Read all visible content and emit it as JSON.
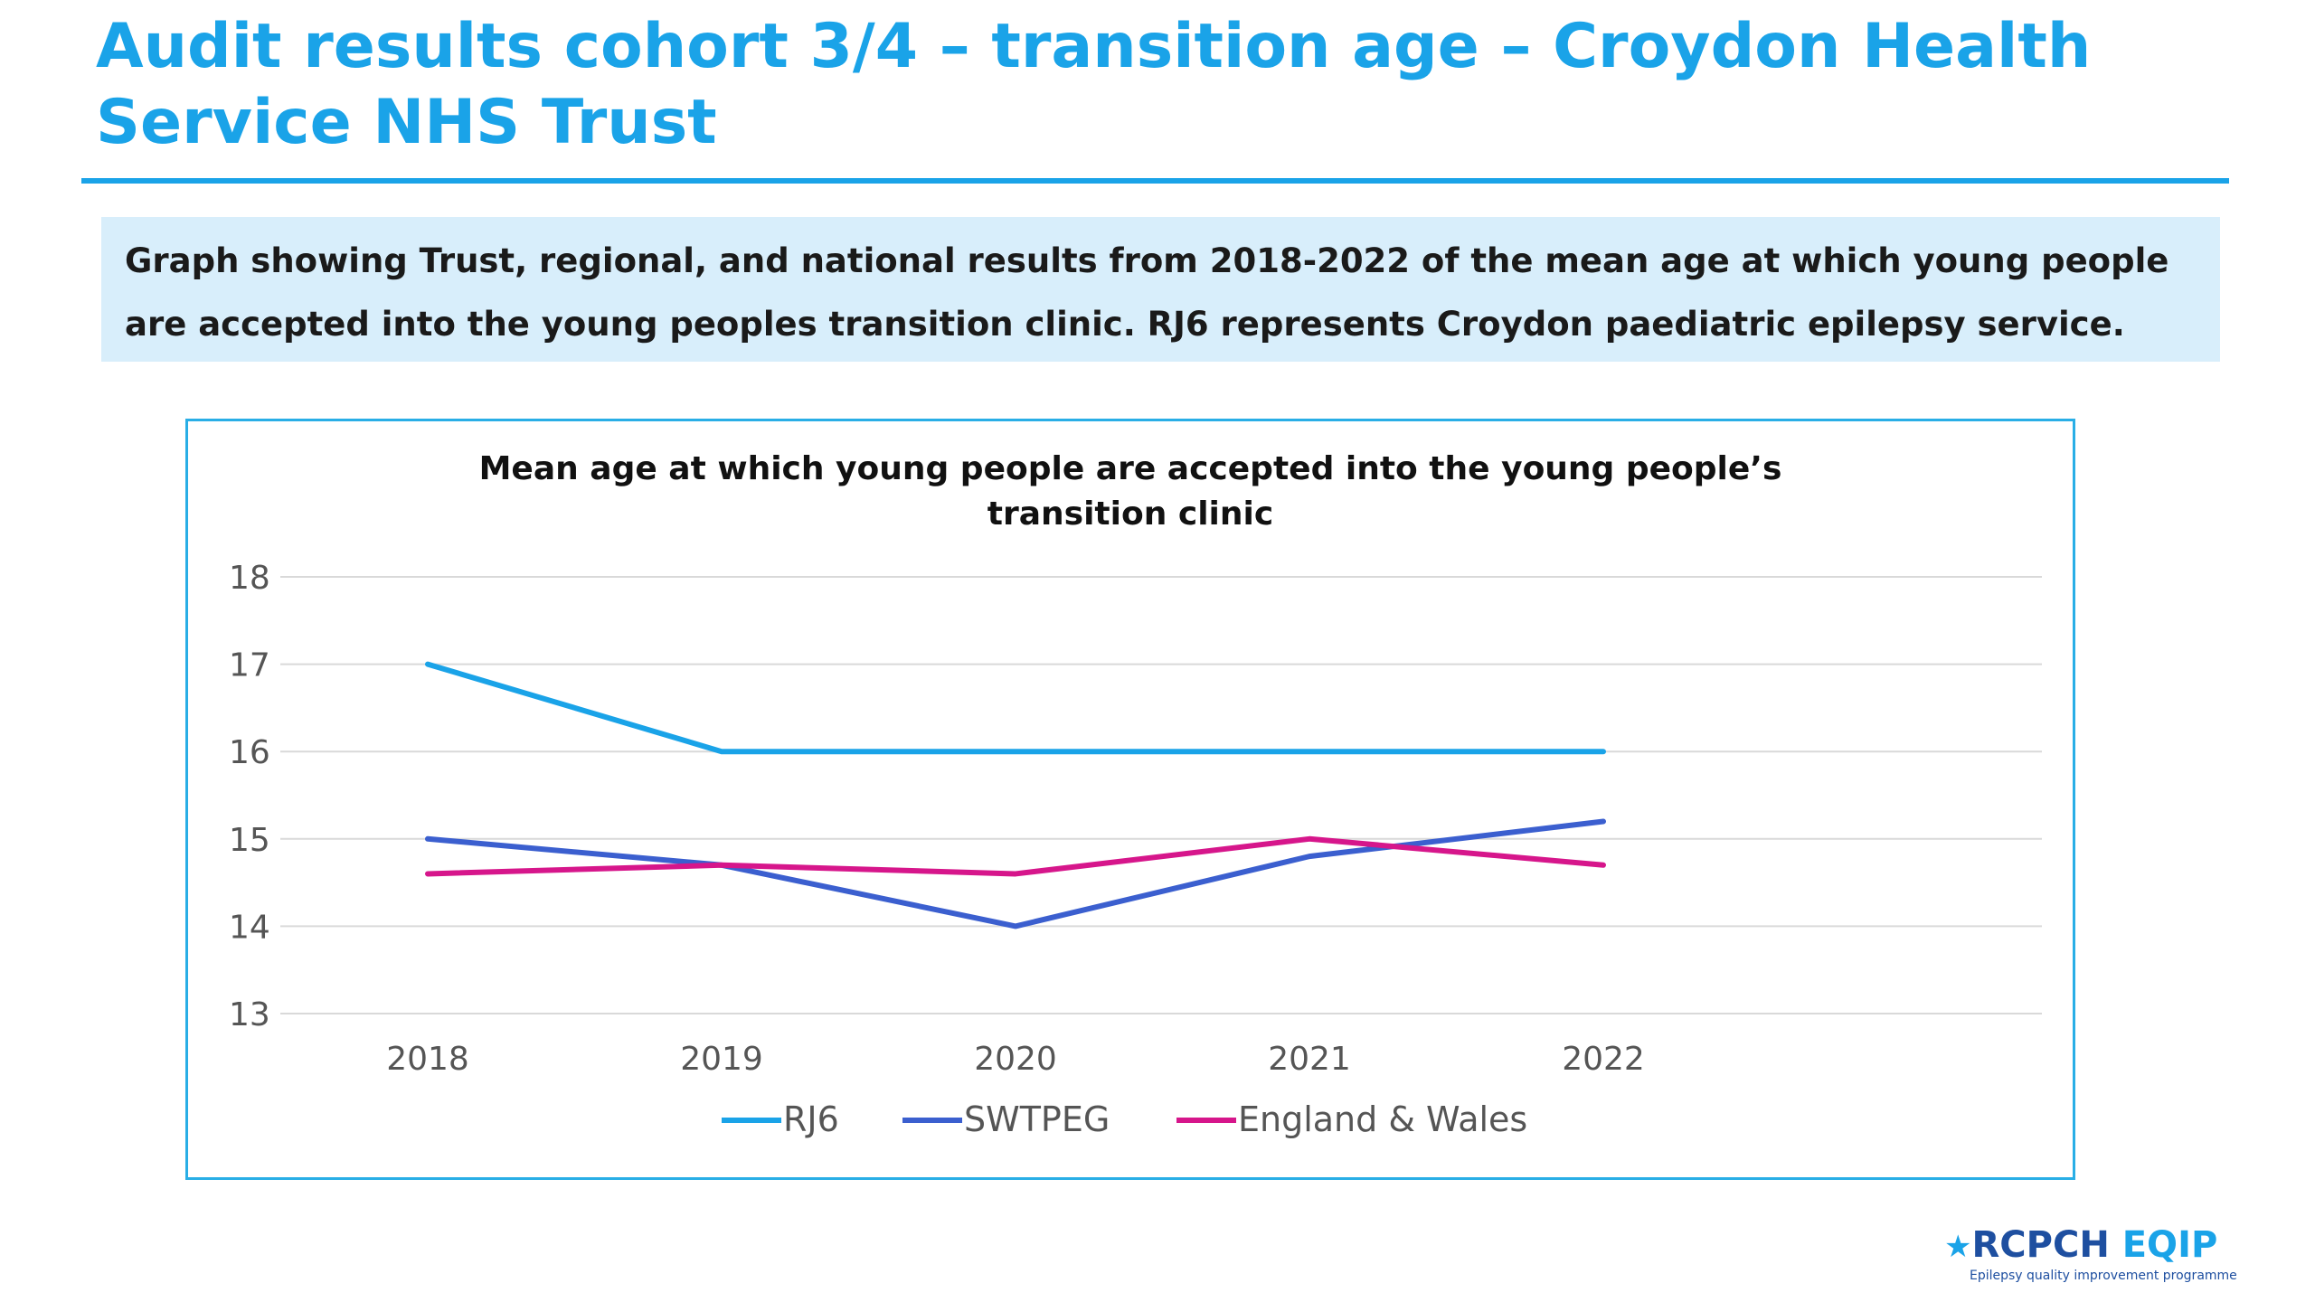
{
  "slide": {
    "title": "Audit results cohort 3/4 – transition age – Croydon Health Service NHS Trust",
    "description": "Graph showing Trust, regional, and national results from 2018-2022 of the mean age at which young people are accepted into the young peoples transition clinic. RJ6 represents Croydon paediatric epilepsy service."
  },
  "chart_data": {
    "type": "line",
    "title_line1": "Mean age at which young people are accepted into the young people’s",
    "title_line2": "transition clinic",
    "categories": [
      "2018",
      "2019",
      "2020",
      "2021",
      "2022"
    ],
    "ylim": [
      13,
      18
    ],
    "yticks": [
      13,
      14,
      15,
      16,
      17,
      18
    ],
    "grid": true,
    "legend_position": "bottom",
    "series": [
      {
        "name": "RJ6",
        "color": "#1aa3e8",
        "values": [
          17,
          16,
          16,
          16,
          16
        ]
      },
      {
        "name": "SWTPEG",
        "color": "#3b5fcf",
        "values": [
          15,
          14.7,
          14,
          14.8,
          15.2
        ]
      },
      {
        "name": "England & Wales",
        "color": "#d6168b",
        "values": [
          14.6,
          14.7,
          14.6,
          15,
          14.7
        ]
      }
    ]
  },
  "logo": {
    "star": "★",
    "main_rcpch": "RCPCH",
    "main_eqip": "EQIP",
    "tagline": "Epilepsy quality improvement programme"
  }
}
